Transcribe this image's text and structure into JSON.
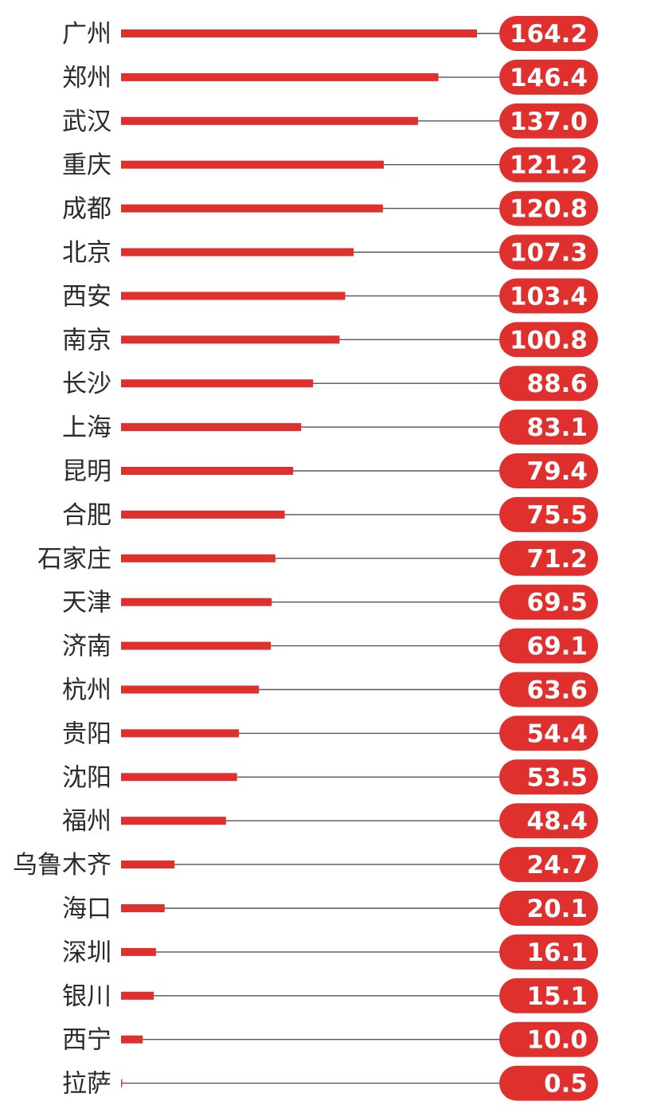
{
  "chart_data": {
    "type": "bar",
    "orientation": "horizontal",
    "categories": [
      "广州",
      "郑州",
      "武汉",
      "重庆",
      "成都",
      "北京",
      "西安",
      "南京",
      "长沙",
      "上海",
      "昆明",
      "合肥",
      "石家庄",
      "天津",
      "济南",
      "杭州",
      "贵阳",
      "沈阳",
      "福州",
      "乌鲁木齐",
      "海口",
      "深圳",
      "银川",
      "西宁",
      "拉萨"
    ],
    "values": [
      164.2,
      146.4,
      137.0,
      121.2,
      120.8,
      107.3,
      103.4,
      100.8,
      88.6,
      83.1,
      79.4,
      75.5,
      71.2,
      69.5,
      69.1,
      63.6,
      54.4,
      53.5,
      48.4,
      24.7,
      20.1,
      16.1,
      15.1,
      10.0,
      0.5
    ],
    "value_labels": [
      "164.2",
      "146.4",
      "137.0",
      "121.2",
      "120.8",
      "107.3",
      "103.4",
      "100.8",
      "88.6",
      "83.1",
      "79.4",
      "75.5",
      "71.2",
      "69.5",
      "69.1",
      "63.6",
      "54.4",
      "53.5",
      "48.4",
      "24.7",
      "20.1",
      "16.1",
      "15.1",
      "10.0",
      "0.5"
    ],
    "title": "",
    "xlabel": "",
    "ylabel": "",
    "xlim": [
      0,
      164.2
    ],
    "grid": false,
    "legend": "none",
    "colors": {
      "bar": "#e0302d",
      "value_badge": "#e0302d",
      "value_text": "#ffffff",
      "guide_line": "#555555",
      "label_text": "#2b2b2b"
    }
  }
}
